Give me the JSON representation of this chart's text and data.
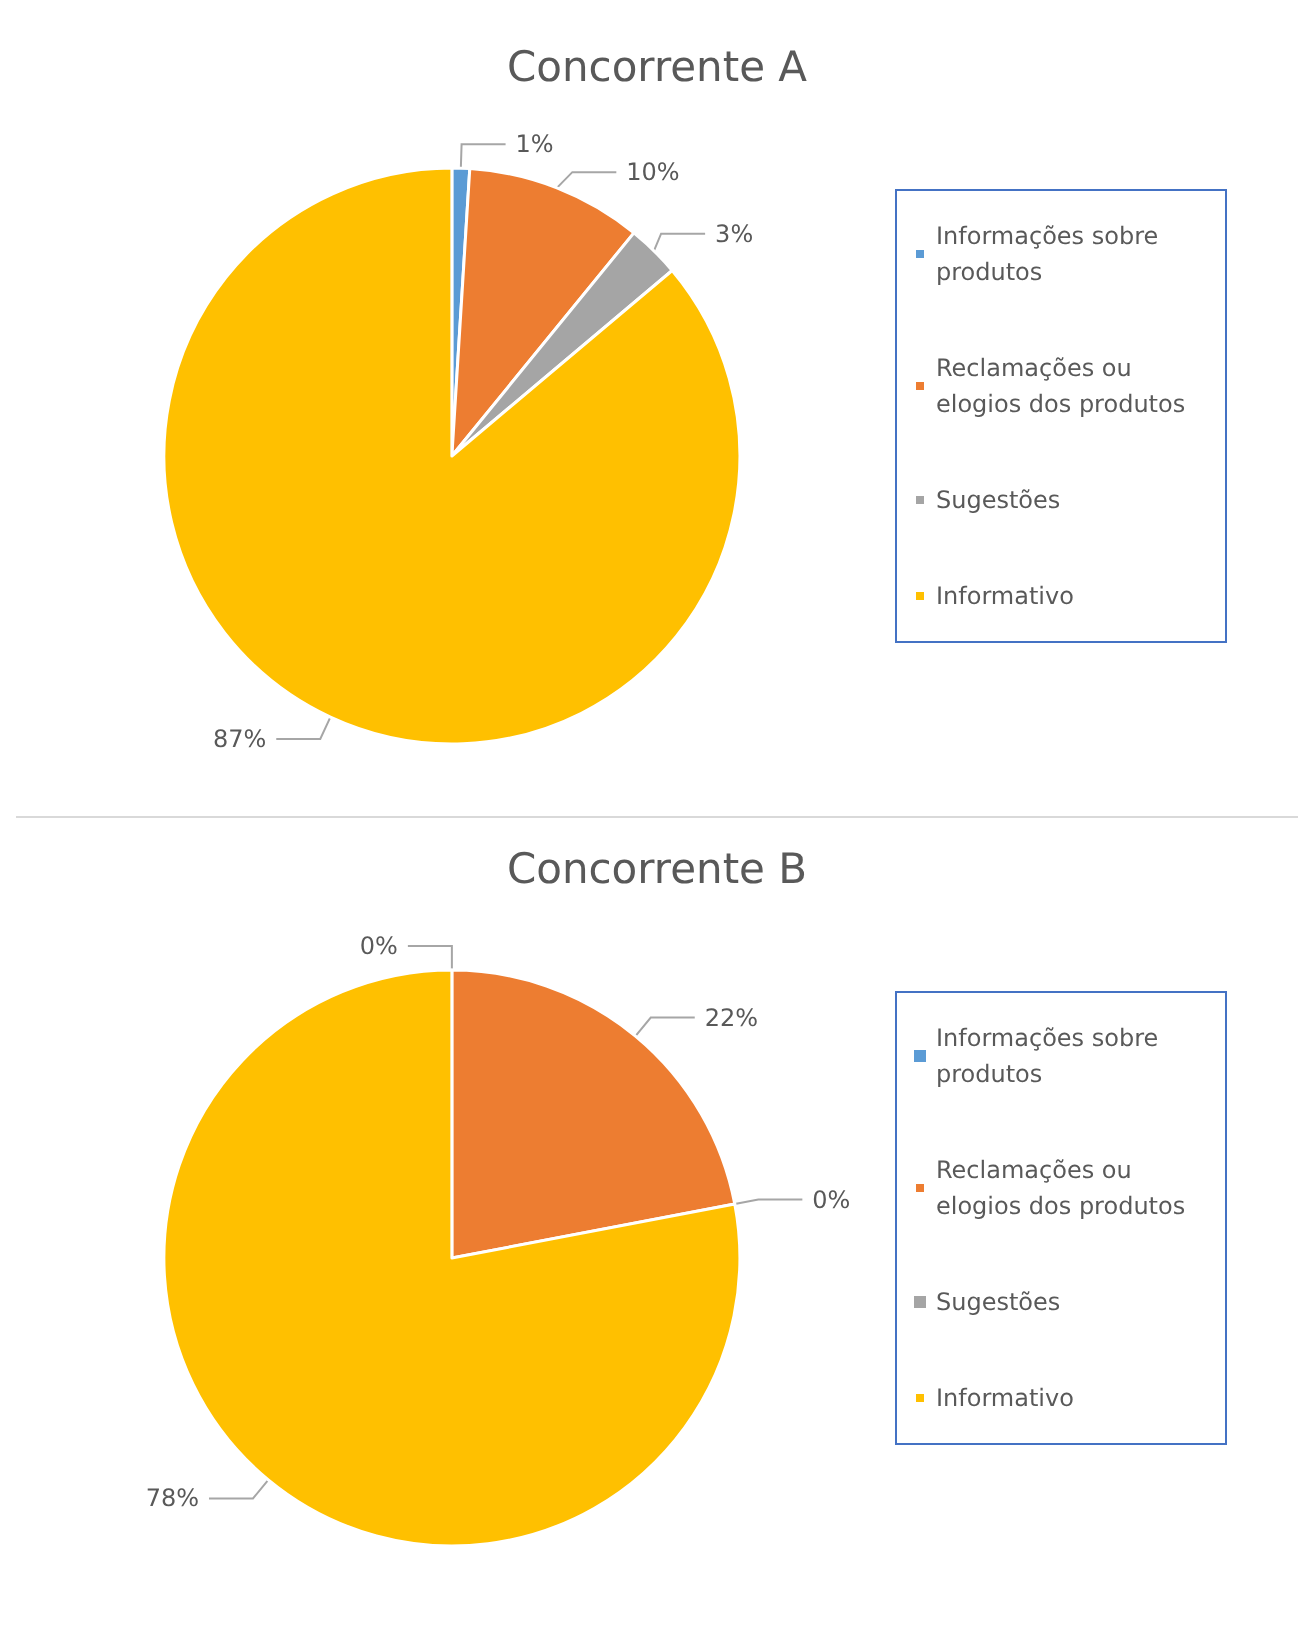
{
  "chart_data": [
    {
      "type": "pie",
      "title": "Concorrente A",
      "categories": [
        "Informações sobre produtos",
        "Reclamações ou elogios dos produtos",
        "Sugestões",
        "Informativo"
      ],
      "values": [
        1,
        10,
        3,
        87
      ],
      "value_labels": [
        "1%",
        "10%",
        "3%",
        "87%"
      ],
      "colors": [
        "#5b9bd5",
        "#ed7d31",
        "#a5a5a5",
        "#ffc000"
      ],
      "legend": "right"
    },
    {
      "type": "pie",
      "title": "Concorrente B",
      "categories": [
        "Informações sobre produtos",
        "Reclamações ou elogios dos produtos",
        "Sugestões",
        "Informativo"
      ],
      "values": [
        0,
        22,
        0,
        78
      ],
      "value_labels": [
        "0%",
        "22%",
        "0%",
        "78%"
      ],
      "colors": [
        "#5b9bd5",
        "#ed7d31",
        "#a5a5a5",
        "#ffc000"
      ],
      "legend": "right"
    }
  ]
}
